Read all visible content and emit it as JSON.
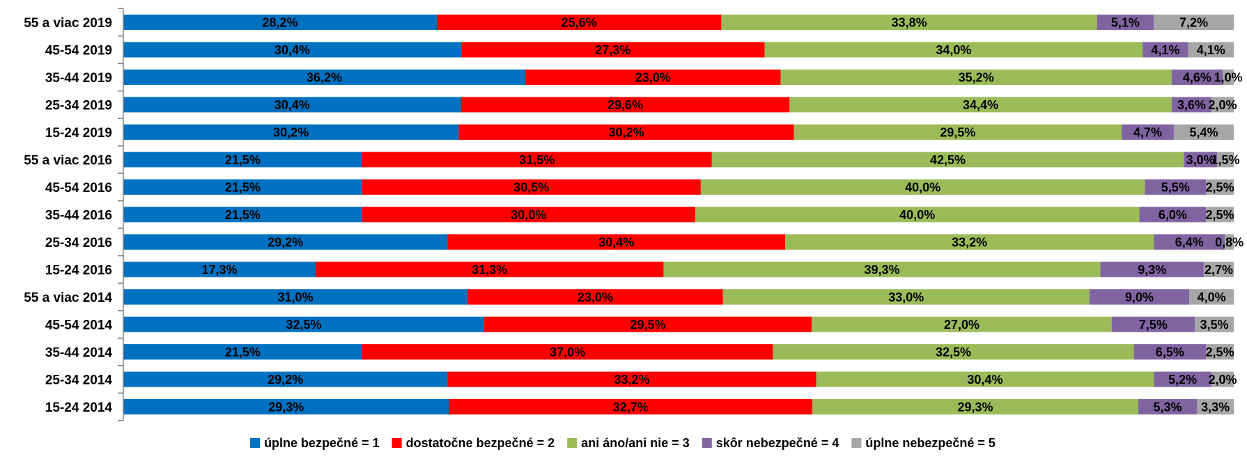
{
  "chart_data": {
    "type": "bar",
    "orientation": "horizontal",
    "stacked": true,
    "percent_stacked": true,
    "categories": [
      "55 a viac 2019",
      "45-54 2019",
      "35-44 2019",
      "25-34 2019",
      "15-24 2019",
      "55 a viac 2016",
      "45-54 2016",
      "35-44 2016",
      "25-34 2016",
      "15-24 2016",
      "55 a viac 2014",
      "45-54 2014",
      "35-44 2014",
      "25-34 2014",
      "15-24 2014"
    ],
    "series": [
      {
        "name": "úplne bezpečné = 1",
        "color": "#0070C0",
        "values": [
          28.2,
          30.4,
          36.2,
          30.4,
          30.2,
          21.5,
          21.5,
          21.5,
          29.2,
          17.3,
          31.0,
          32.5,
          21.5,
          29.2,
          29.3
        ],
        "labels": [
          "28,2%",
          "30,4%",
          "36,2%",
          "30,4%",
          "30,2%",
          "21,5%",
          "21,5%",
          "21,5%",
          "29,2%",
          "17,3%",
          "31,0%",
          "32,5%",
          "21,5%",
          "29,2%",
          "29,3%"
        ]
      },
      {
        "name": "dostatočne bezpečné = 2",
        "color": "#FF0000",
        "values": [
          25.6,
          27.3,
          23.0,
          29.6,
          30.2,
          31.5,
          30.5,
          30.0,
          30.4,
          31.3,
          23.0,
          29.5,
          37.0,
          33.2,
          32.7
        ],
        "labels": [
          "25,6%",
          "27,3%",
          "23,0%",
          "29,6%",
          "30,2%",
          "31,5%",
          "30,5%",
          "30,0%",
          "30,4%",
          "31,3%",
          "23,0%",
          "29,5%",
          "37,0%",
          "33,2%",
          "32,7%"
        ]
      },
      {
        "name": "ani áno/ani nie = 3",
        "color": "#9BBB59",
        "values": [
          33.8,
          34.0,
          35.2,
          34.4,
          29.5,
          42.5,
          40.0,
          40.0,
          33.2,
          39.3,
          33.0,
          27.0,
          32.5,
          30.4,
          29.3
        ],
        "labels": [
          "33,8%",
          "34,0%",
          "35,2%",
          "34,4%",
          "29,5%",
          "42,5%",
          "40,0%",
          "40,0%",
          "33,2%",
          "39,3%",
          "33,0%",
          "27,0%",
          "32,5%",
          "30,4%",
          "29,3%"
        ]
      },
      {
        "name": "skôr nebezpečné = 4",
        "color": "#8064A2",
        "values": [
          5.1,
          4.1,
          4.6,
          3.6,
          4.7,
          3.0,
          5.5,
          6.0,
          6.4,
          9.3,
          9.0,
          7.5,
          6.5,
          5.2,
          5.3
        ],
        "labels": [
          "5,1%",
          "4,1%",
          "4,6%",
          "3,6%",
          "4,7%",
          "3,0%",
          "5,5%",
          "6,0%",
          "6,4%",
          "9,3%",
          "9,0%",
          "7,5%",
          "6,5%",
          "5,2%",
          "5,3%"
        ]
      },
      {
        "name": "úplne nebezpečné = 5",
        "color": "#A6A6A6",
        "values": [
          7.2,
          4.1,
          1.0,
          2.0,
          5.4,
          1.5,
          2.5,
          2.5,
          0.8,
          2.7,
          4.0,
          3.5,
          2.5,
          2.0,
          3.3
        ],
        "labels": [
          "7,2%",
          "4,1%",
          "1,0%",
          "2,0%",
          "5,4%",
          "1,5%",
          "2,5%",
          "2,5%",
          "0,8%",
          "2,7%",
          "4,0%",
          "3,5%",
          "2,5%",
          "2,0%",
          "3,3%"
        ]
      }
    ],
    "xlim": [
      0,
      100
    ],
    "grid": false,
    "legend_position": "bottom"
  }
}
